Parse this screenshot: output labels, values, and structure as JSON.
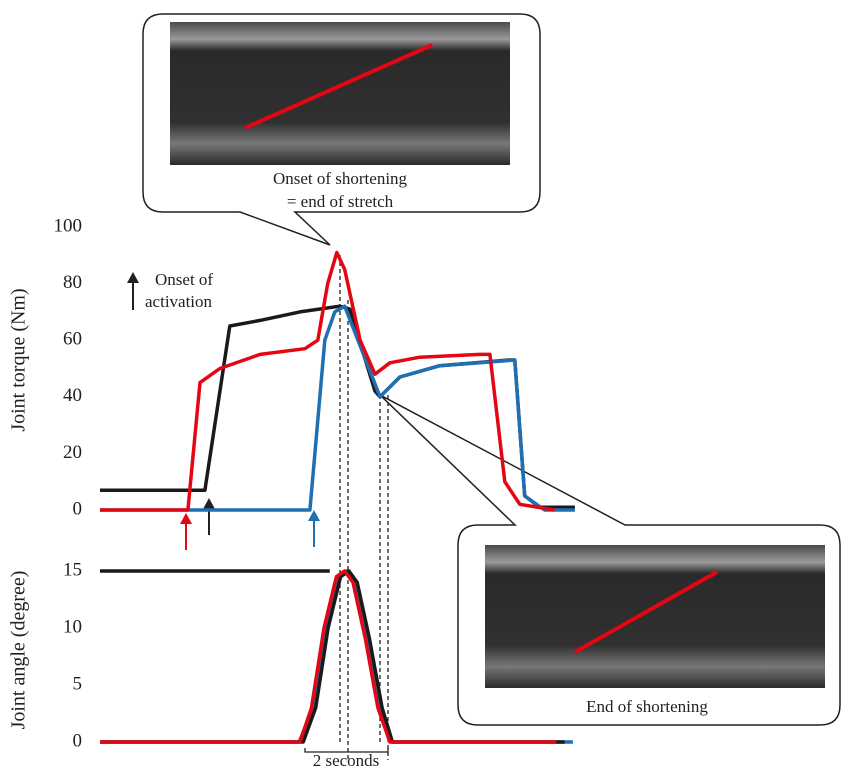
{
  "chart_data": [
    {
      "type": "line",
      "ylabel": "Joint torque (Nm)",
      "ylim": [
        0,
        100
      ],
      "yticks": [
        0,
        20,
        40,
        60,
        80,
        100
      ],
      "xlim": [
        0,
        11.5
      ],
      "annotations": [
        "Onset of",
        "activation",
        "Onset of shortening",
        "= end of stretch",
        "End of shortening"
      ],
      "series": [
        {
          "color": "#1a1a1a",
          "x": [
            0,
            2.53,
            3.13,
            3.86,
            4.82,
            5.78,
            6.02,
            6.63,
            6.75,
            7.23,
            8.19,
            9.88,
            10.0,
            10.24,
            10.6,
            11.45
          ],
          "values": [
            7,
            7,
            65,
            67,
            70,
            72,
            71,
            42,
            40,
            47,
            51,
            53,
            53,
            5,
            1,
            1
          ]
        },
        {
          "color": "#1f6fb2",
          "x": [
            0,
            5.06,
            5.18,
            5.42,
            5.66,
            5.9,
            6.75,
            7.23,
            8.19,
            10.0,
            10.24,
            10.72,
            11.45
          ],
          "values": [
            0,
            0,
            20,
            60,
            70,
            72,
            40,
            47,
            51,
            53,
            5,
            0,
            0
          ]
        },
        {
          "color": "#e30613",
          "x": [
            0,
            2.12,
            2.41,
            2.89,
            3.86,
            4.94,
            5.25,
            5.49,
            5.71,
            5.9,
            6.27,
            6.63,
            6.99,
            7.71,
            9.16,
            9.4,
            9.76,
            10.12,
            10.96
          ],
          "values": [
            0,
            0,
            45,
            50,
            55,
            57,
            60,
            80,
            91,
            85,
            60,
            48,
            52,
            54,
            55,
            55,
            10,
            2,
            0
          ]
        }
      ]
    },
    {
      "type": "line",
      "ylabel": "Joint angle (degree)",
      "ylim": [
        0,
        15
      ],
      "yticks": [
        0,
        5,
        10,
        15
      ],
      "xlim": [
        0,
        11.5
      ],
      "annotations": [
        "2 seconds"
      ],
      "series": [
        {
          "color": "#1a1a1a",
          "x": [
            0,
            5.54
          ],
          "values": [
            15,
            15
          ]
        },
        {
          "color": "#1f6fb2",
          "x": [
            0,
            4.8,
            5.15,
            5.45,
            5.75,
            5.95,
            6.15,
            6.45,
            6.75,
            7.0,
            11.4
          ],
          "values": [
            0,
            0,
            3,
            10,
            14.5,
            15,
            14,
            9,
            3,
            0,
            0
          ]
        },
        {
          "color": "#1a1a1a",
          "x": [
            0,
            4.9,
            5.2,
            5.5,
            5.8,
            6.0,
            6.2,
            6.5,
            6.8,
            7.05,
            11.2
          ],
          "values": [
            0,
            0,
            3,
            10,
            14.5,
            15,
            14,
            9,
            3,
            0,
            0
          ]
        },
        {
          "color": "#e30613",
          "x": [
            0,
            4.82,
            5.1,
            5.4,
            5.7,
            5.9,
            6.1,
            6.4,
            6.7,
            6.99,
            11.0
          ],
          "values": [
            0,
            0,
            3,
            10,
            14.5,
            15,
            14,
            9,
            3,
            0,
            0
          ]
        }
      ]
    }
  ]
}
